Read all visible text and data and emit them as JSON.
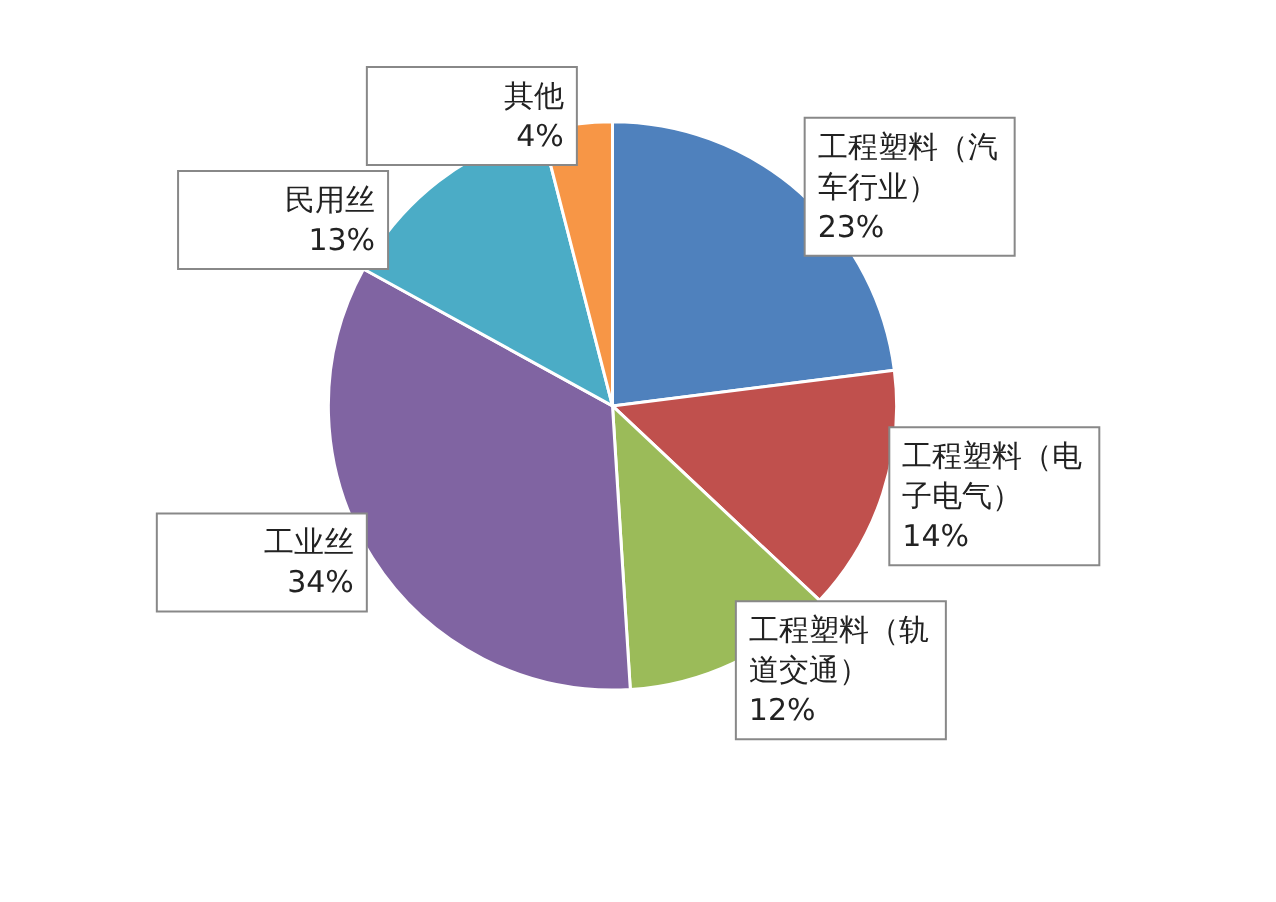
{
  "chart_data": {
    "type": "pie",
    "categories": [
      "工程塑料（汽车行业）",
      "工程塑料（电子电气）",
      "工程塑料（轨道交通）",
      "工业丝",
      "民用丝",
      "其他"
    ],
    "values": [
      23,
      14,
      12,
      34,
      13,
      4
    ],
    "colors": [
      "#4f81bd",
      "#c0504d",
      "#9bbb59",
      "#8064a2",
      "#4bacc6",
      "#f79646"
    ],
    "value_labels": [
      "23%",
      "14%",
      "12%",
      "34%",
      "13%",
      "4%"
    ]
  }
}
